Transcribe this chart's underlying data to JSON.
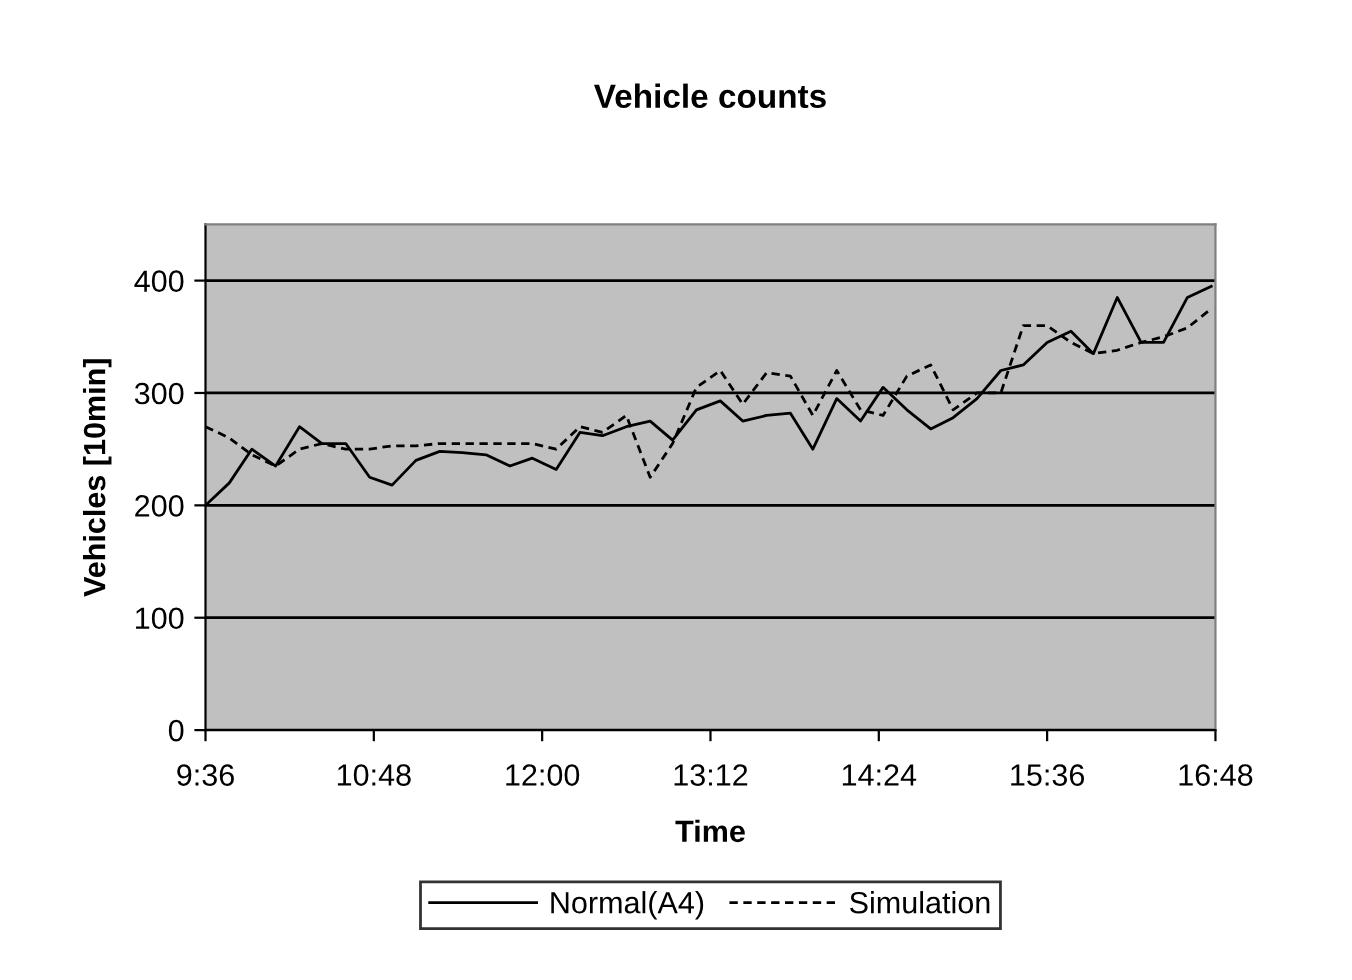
{
  "chart_data": {
    "type": "line",
    "title": "Vehicle counts",
    "xlabel": "Time",
    "ylabel": "Vehicles [10min]",
    "x": [
      9.6,
      9.77,
      9.93,
      10.1,
      10.27,
      10.43,
      10.6,
      10.77,
      10.93,
      11.1,
      11.27,
      11.43,
      11.6,
      11.77,
      11.93,
      12.1,
      12.27,
      12.43,
      12.6,
      12.77,
      12.93,
      13.1,
      13.27,
      13.43,
      13.6,
      13.77,
      13.93,
      14.1,
      14.27,
      14.43,
      14.6,
      14.77,
      14.93,
      15.1,
      15.27,
      15.43,
      15.6,
      15.77,
      15.93,
      16.1,
      16.27,
      16.43,
      16.6,
      16.77
    ],
    "series": [
      {
        "name": "Normal(A4)",
        "color": "#000000",
        "line_style": "solid",
        "values": [
          200,
          220,
          250,
          235,
          270,
          255,
          255,
          225,
          218,
          240,
          248,
          247,
          245,
          235,
          242,
          232,
          265,
          262,
          270,
          275,
          258,
          285,
          293,
          275,
          280,
          282,
          250,
          295,
          275,
          305,
          285,
          268,
          278,
          295,
          320,
          325,
          345,
          355,
          335,
          385,
          345,
          345,
          385,
          395
        ]
      },
      {
        "name": "Simulation",
        "color": "#000000",
        "line_style": "dashed",
        "values": [
          270,
          260,
          245,
          235,
          250,
          255,
          250,
          250,
          253,
          253,
          255,
          255,
          255,
          255,
          255,
          250,
          270,
          265,
          280,
          225,
          255,
          305,
          320,
          290,
          318,
          315,
          280,
          320,
          285,
          280,
          315,
          325,
          285,
          300,
          300,
          360,
          360,
          345,
          335,
          338,
          345,
          350,
          358,
          375
        ]
      }
    ],
    "xlim": [
      9.6,
      16.8
    ],
    "xticks": [
      {
        "value": 9.6,
        "label": "9:36"
      },
      {
        "value": 10.8,
        "label": "10:48"
      },
      {
        "value": 12.0,
        "label": "12:00"
      },
      {
        "value": 13.2,
        "label": "13:12"
      },
      {
        "value": 14.4,
        "label": "14:24"
      },
      {
        "value": 15.6,
        "label": "15:36"
      },
      {
        "value": 16.8,
        "label": "16:48"
      }
    ],
    "ylim": [
      0,
      450
    ],
    "yticks": [
      0,
      100,
      200,
      300,
      400
    ],
    "grid": "y",
    "legend": "bottom",
    "marker": "none"
  }
}
